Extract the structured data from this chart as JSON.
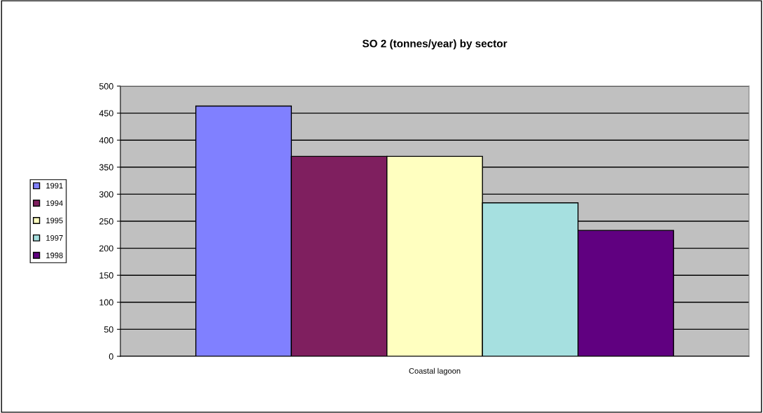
{
  "chart_data": {
    "type": "bar",
    "title": "SO 2 (tonnes/year) by sector",
    "categories": [
      "Coastal lagoon"
    ],
    "series": [
      {
        "name": "1991",
        "color": "#8080ff",
        "values": [
          463
        ]
      },
      {
        "name": "1994",
        "color": "#7f1f5f",
        "values": [
          370
        ]
      },
      {
        "name": "1995",
        "color": "#ffffc0",
        "values": [
          370
        ]
      },
      {
        "name": "1997",
        "color": "#a6e0e0",
        "values": [
          284
        ]
      },
      {
        "name": "1998",
        "color": "#600080",
        "values": [
          233
        ]
      }
    ],
    "ylim": [
      0,
      500
    ],
    "yticks": [
      0,
      50,
      100,
      150,
      200,
      250,
      300,
      350,
      400,
      450,
      500
    ],
    "grid": "y",
    "legend": "left"
  }
}
